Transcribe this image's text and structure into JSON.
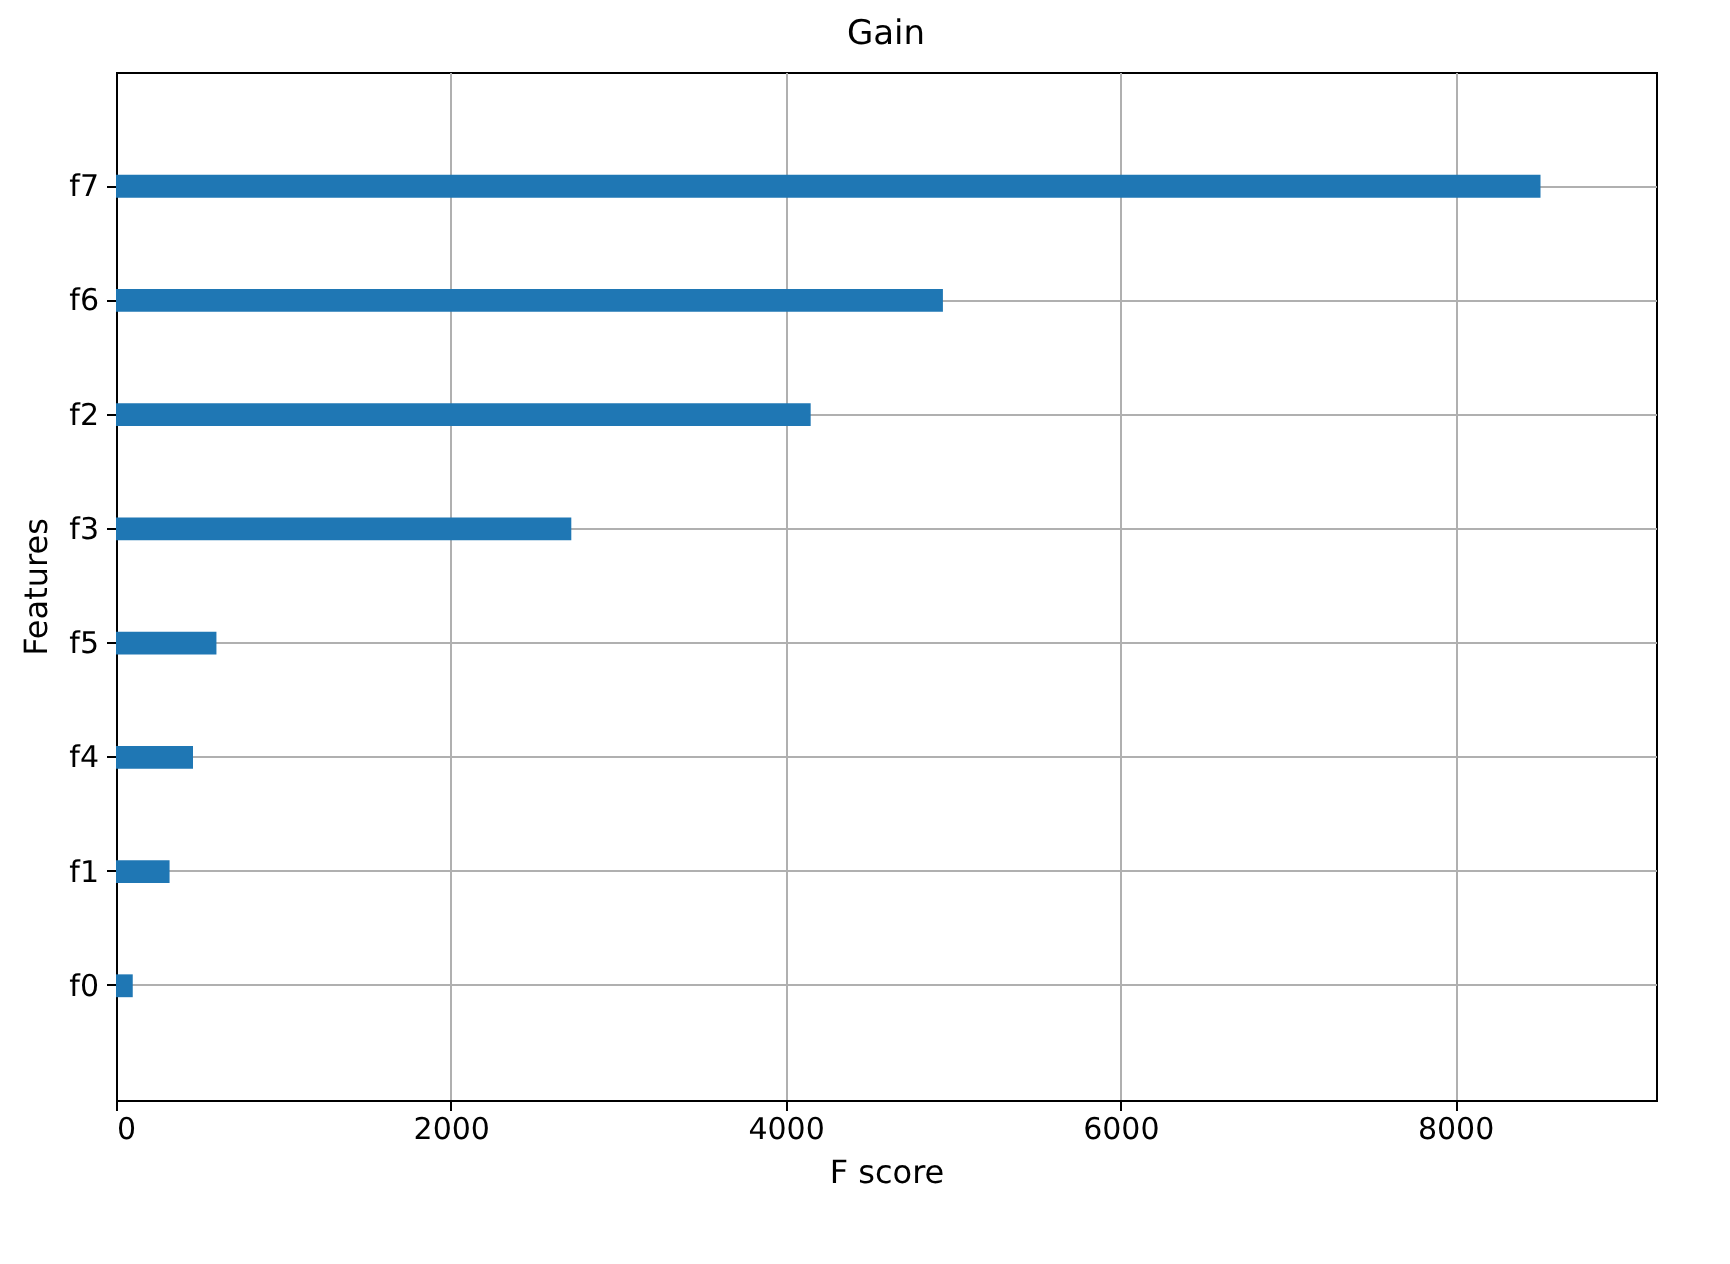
{
  "chart_data": {
    "type": "bar",
    "orientation": "horizontal",
    "title": "Gain",
    "xlabel": "F score",
    "ylabel": "Features",
    "categories": [
      "f7",
      "f6",
      "f2",
      "f3",
      "f5",
      "f4",
      "f1",
      "f0"
    ],
    "values": [
      8510,
      4940,
      4150,
      2720,
      600,
      460,
      320,
      100
    ],
    "color": "#1f77b4",
    "xlim": [
      0,
      9200
    ],
    "xticks": [
      0,
      2000,
      4000,
      6000,
      8000
    ],
    "grid": true
  }
}
